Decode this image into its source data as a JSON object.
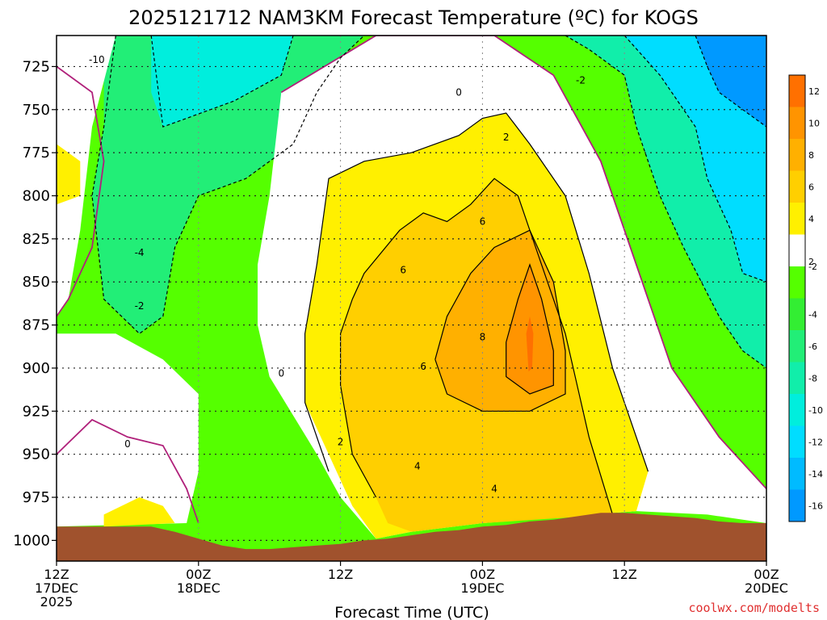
{
  "page": {
    "title": "2025121712 NAM3KM Forecast Temperature (ºC) for KOGS",
    "credit": "coolwx.com/modelts"
  },
  "chart_data": {
    "type": "filled-contour",
    "title": "2025121712 NAM3KM Forecast Temperature (ºC) for KOGS",
    "xlabel": "Forecast Time (UTC)",
    "ylabel": "",
    "x_ticks": [
      {
        "hour": 0,
        "lines": [
          "12Z",
          "17DEC",
          "2025"
        ]
      },
      {
        "hour": 12,
        "lines": [
          "00Z",
          "18DEC"
        ]
      },
      {
        "hour": 24,
        "lines": [
          "12Z"
        ]
      },
      {
        "hour": 36,
        "lines": [
          "00Z",
          "19DEC"
        ]
      },
      {
        "hour": 48,
        "lines": [
          "12Z"
        ]
      },
      {
        "hour": 60,
        "lines": [
          "00Z",
          "20DEC"
        ]
      }
    ],
    "xlim": [
      0,
      60
    ],
    "y_ticks": [
      725,
      750,
      775,
      800,
      825,
      850,
      875,
      900,
      925,
      950,
      975,
      1000
    ],
    "ylim": [
      1012,
      707
    ],
    "grid": true,
    "colorbar": {
      "units": "ºC",
      "bins": [
        {
          "label": "12",
          "color": "#ff7000"
        },
        {
          "label": "10",
          "color": "#ff9400"
        },
        {
          "label": "8",
          "color": "#ffb000"
        },
        {
          "label": "6",
          "color": "#ffcf00"
        },
        {
          "label": "4",
          "color": "#fff000"
        },
        {
          "label": "2",
          "color": "#ffffff"
        },
        {
          "label": "-2",
          "color": "#55ff00"
        },
        {
          "label": "-4",
          "color": "#33ee33"
        },
        {
          "label": "-6",
          "color": "#22ee77"
        },
        {
          "label": "-8",
          "color": "#11eeaa"
        },
        {
          "label": "-10",
          "color": "#00eedd"
        },
        {
          "label": "-12",
          "color": "#00ddff"
        },
        {
          "label": "-14",
          "color": "#00bbff"
        },
        {
          "label": "-16",
          "color": "#0099ff"
        }
      ]
    },
    "contour_labels": [
      {
        "text": "-10",
        "x": 3.4,
        "p": 721
      },
      {
        "text": "-2",
        "x": 44.3,
        "p": 733
      },
      {
        "text": "0",
        "x": 34.0,
        "p": 740
      },
      {
        "text": "2",
        "x": 38.0,
        "p": 766
      },
      {
        "text": "6",
        "x": 36.0,
        "p": 815
      },
      {
        "text": "-4",
        "x": 7.0,
        "p": 833
      },
      {
        "text": "6",
        "x": 29.3,
        "p": 843
      },
      {
        "text": "-2",
        "x": 7.0,
        "p": 864
      },
      {
        "text": "8",
        "x": 36.0,
        "p": 882
      },
      {
        "text": "0",
        "x": 19.0,
        "p": 903
      },
      {
        "text": "6",
        "x": 31.0,
        "p": 899
      },
      {
        "text": "0",
        "x": 6.0,
        "p": 944
      },
      {
        "text": "2",
        "x": 24.0,
        "p": 943
      },
      {
        "text": "4",
        "x": 30.5,
        "p": 957
      },
      {
        "text": "4",
        "x": 37.0,
        "p": 970
      }
    ],
    "surface_pressure_approx": [
      [
        0,
        992
      ],
      [
        2,
        992
      ],
      [
        4,
        992
      ],
      [
        6,
        992
      ],
      [
        8,
        992
      ],
      [
        10,
        995
      ],
      [
        12,
        999
      ],
      [
        14,
        1003
      ],
      [
        16,
        1005
      ],
      [
        18,
        1005
      ],
      [
        20,
        1004
      ],
      [
        22,
        1003
      ],
      [
        24,
        1002
      ],
      [
        26,
        1000
      ],
      [
        28,
        999
      ],
      [
        30,
        997
      ],
      [
        32,
        995
      ],
      [
        34,
        994
      ],
      [
        36,
        992
      ],
      [
        38,
        991
      ],
      [
        40,
        989
      ],
      [
        42,
        988
      ],
      [
        44,
        986
      ],
      [
        46,
        984
      ],
      [
        48,
        984
      ],
      [
        50,
        985
      ],
      [
        52,
        986
      ],
      [
        54,
        987
      ],
      [
        56,
        989
      ],
      [
        58,
        990
      ],
      [
        60,
        990
      ]
    ]
  }
}
